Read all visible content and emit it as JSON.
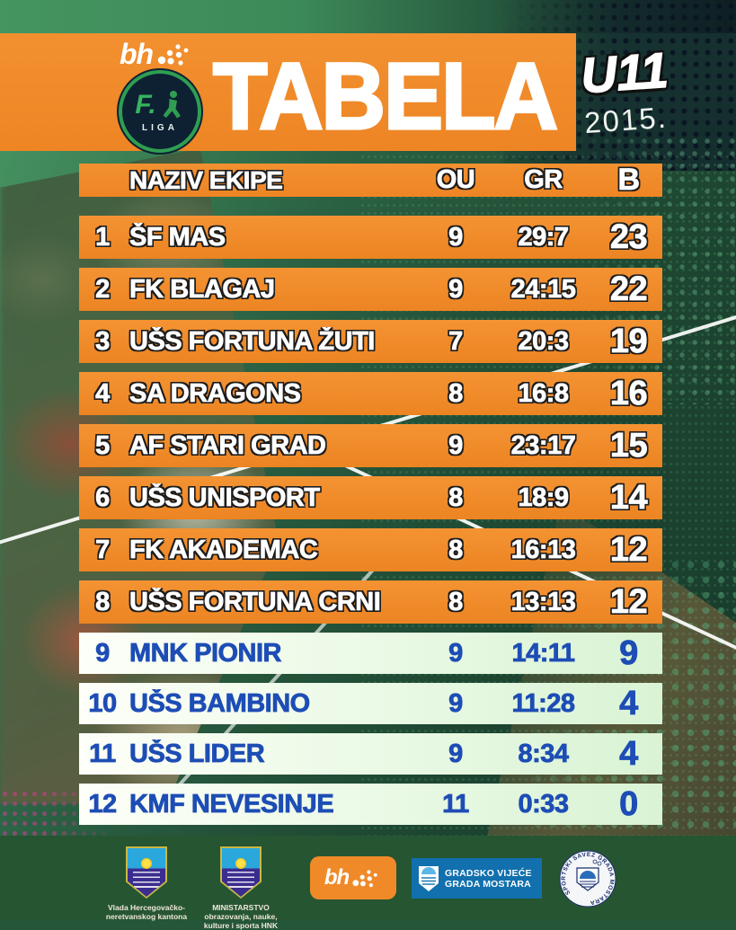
{
  "header": {
    "brand": "bh",
    "badge_initial": "F.",
    "badge_label": "LIGA",
    "title": "TABELA",
    "age_group": "U11",
    "season": "2015."
  },
  "table": {
    "columns": {
      "name": "NAZIV EKIPE",
      "ou": "OU",
      "gr": "GR",
      "b": "B"
    },
    "rows": [
      {
        "rank": "1",
        "team": "ŠF MAS",
        "ou": "9",
        "gr": "29:7",
        "b": "23",
        "tier": "top"
      },
      {
        "rank": "2",
        "team": "FK BLAGAJ",
        "ou": "9",
        "gr": "24:15",
        "b": "22",
        "tier": "top"
      },
      {
        "rank": "3",
        "team": "UŠS FORTUNA ŽUTI",
        "ou": "7",
        "gr": "20:3",
        "b": "19",
        "tier": "top"
      },
      {
        "rank": "4",
        "team": "SA DRAGONS",
        "ou": "8",
        "gr": "16:8",
        "b": "16",
        "tier": "top"
      },
      {
        "rank": "5",
        "team": "AF STARI GRAD",
        "ou": "9",
        "gr": "23:17",
        "b": "15",
        "tier": "top"
      },
      {
        "rank": "6",
        "team": "UŠS UNISPORT",
        "ou": "8",
        "gr": "18:9",
        "b": "14",
        "tier": "top"
      },
      {
        "rank": "7",
        "team": "FK AKADEMAC",
        "ou": "8",
        "gr": "16:13",
        "b": "12",
        "tier": "top"
      },
      {
        "rank": "8",
        "team": "UŠS FORTUNA CRNI",
        "ou": "8",
        "gr": "13:13",
        "b": "12",
        "tier": "top"
      },
      {
        "rank": "9",
        "team": "MNK PIONIR",
        "ou": "9",
        "gr": "14:11",
        "b": "9",
        "tier": "bottom"
      },
      {
        "rank": "10",
        "team": "UŠS BAMBINO",
        "ou": "9",
        "gr": "11:28",
        "b": "4",
        "tier": "bottom"
      },
      {
        "rank": "11",
        "team": "UŠS LIDER",
        "ou": "9",
        "gr": "8:34",
        "b": "4",
        "tier": "bottom"
      },
      {
        "rank": "12",
        "team": "KMF NEVESINJE",
        "ou": "11",
        "gr": "0:33",
        "b": "0",
        "tier": "bottom"
      }
    ]
  },
  "footer": {
    "sponsors": [
      {
        "name": "vlada-hnk",
        "caption": [
          "Vlada Hercegovačko-",
          "neretvanskog kantona"
        ]
      },
      {
        "name": "ministarstvo-hnk",
        "caption": [
          "MINISTARSTVO",
          "obrazovanja, nauke,",
          "kulture i sporta HNK"
        ]
      },
      {
        "name": "bh-telecom",
        "label": "bh"
      },
      {
        "name": "gradsko-vijece",
        "lines": [
          "GRADSKO VIJEĆE",
          "GRADA MOSTARA"
        ]
      },
      {
        "name": "sportski-savez",
        "ring_text": "SPORTSKI SAVEZ GRADA MOSTARA"
      }
    ]
  },
  "colors": {
    "accent_orange": "#F08A28",
    "row_outline": "#1C1C1C",
    "relegation_blue": "#1D4DB5",
    "light_row": "#E7F8E2",
    "background_green": "#2A5C40",
    "footer_green": "#265532",
    "banner_blue": "#1170AD"
  },
  "chart_data": {
    "type": "table",
    "title": "TABELA",
    "subtitle": "U11 2015.",
    "columns": [
      "#",
      "NAZIV EKIPE",
      "OU",
      "GR",
      "B"
    ],
    "rows": [
      [
        1,
        "ŠF MAS",
        9,
        "29:7",
        23
      ],
      [
        2,
        "FK BLAGAJ",
        9,
        "24:15",
        22
      ],
      [
        3,
        "UŠS FORTUNA ŽUTI",
        7,
        "20:3",
        19
      ],
      [
        4,
        "SA DRAGONS",
        8,
        "16:8",
        16
      ],
      [
        5,
        "AF STARI GRAD",
        9,
        "23:17",
        15
      ],
      [
        6,
        "UŠS UNISPORT",
        8,
        "18:9",
        14
      ],
      [
        7,
        "FK AKADEMAC",
        8,
        "16:13",
        12
      ],
      [
        8,
        "UŠS FORTUNA CRNI",
        8,
        "13:13",
        12
      ],
      [
        9,
        "MNK PIONIR",
        9,
        "14:11",
        9
      ],
      [
        10,
        "UŠS BAMBINO",
        9,
        "11:28",
        4
      ],
      [
        11,
        "UŠS LIDER",
        9,
        "8:34",
        4
      ],
      [
        12,
        "KMF NEVESINJE",
        11,
        "0:33",
        0
      ]
    ]
  }
}
